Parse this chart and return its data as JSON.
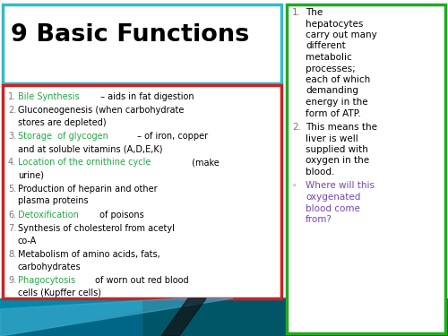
{
  "title": "9 Basic Functions",
  "title_color": "#000000",
  "title_box_color": "#33BBCC",
  "left_box_color": "#CC2222",
  "right_box_color": "#22AA22",
  "bg_color": "#FFFFFF",
  "green_text": "#22AA44",
  "purple_text": "#7744BB",
  "gray_num": "#777777",
  "left_items": [
    {
      "num": "1.",
      "parts": [
        {
          "text": "Bile Synthesis",
          "color": "#22AA44",
          "bold": false
        },
        {
          "text": " – aids in fat digestion",
          "color": "#000000",
          "bold": false
        }
      ],
      "line2": ""
    },
    {
      "num": "2.",
      "parts": [
        {
          "text": "Gluconeogenesis (when carbohydrate",
          "color": "#000000",
          "bold": false
        }
      ],
      "line2": "stores are depleted)"
    },
    {
      "num": "3.",
      "parts": [
        {
          "text": "Storage  of glycogen",
          "color": "#22AA44",
          "bold": false
        },
        {
          "text": " – of iron, copper",
          "color": "#000000",
          "bold": false
        }
      ],
      "line2": "and at soluble vitamins (A,D,E,K)"
    },
    {
      "num": "4.",
      "parts": [
        {
          "text": "Location of the ornithine cycle",
          "color": "#22AA44",
          "bold": false
        },
        {
          "text": " (make",
          "color": "#000000",
          "bold": false
        }
      ],
      "line2": "urine)"
    },
    {
      "num": "5.",
      "parts": [
        {
          "text": "Production of heparin and other",
          "color": "#000000",
          "bold": false
        }
      ],
      "line2": "plasma proteins"
    },
    {
      "num": "6.",
      "parts": [
        {
          "text": "Detoxification",
          "color": "#22AA44",
          "bold": false
        },
        {
          "text": " of poisons",
          "color": "#000000",
          "bold": false
        }
      ],
      "line2": ""
    },
    {
      "num": "7.",
      "parts": [
        {
          "text": "Synthesis of cholesterol from acetyl",
          "color": "#000000",
          "bold": false
        }
      ],
      "line2": "co-A"
    },
    {
      "num": "8.",
      "parts": [
        {
          "text": "Metabolism of amino acids, fats,",
          "color": "#000000",
          "bold": false
        }
      ],
      "line2": "carbohydrates"
    },
    {
      "num": "9.",
      "parts": [
        {
          "text": "Phagocytosis",
          "color": "#22AA44",
          "bold": false
        },
        {
          "text": " of worn out red blood",
          "color": "#000000",
          "bold": false
        }
      ],
      "line2": "cells (Kupffer cells)"
    }
  ],
  "right_item1_num": "1.",
  "right_item1_lines": [
    "The",
    "hepatocytes",
    "carry out many",
    "different",
    "metabolic",
    "processes;",
    "each of which",
    "demanding",
    "energy in the",
    "form of ATP."
  ],
  "right_item2_num": "2.",
  "right_item2_lines": [
    "This means the",
    "liver is well",
    "supplied with",
    "oxygen in the",
    "blood."
  ],
  "right_item3_num": "◦",
  "right_item3_lines": [
    "Where will this",
    "oxygenated",
    "blood come",
    "from?"
  ],
  "right_item3_color": "#7744BB"
}
